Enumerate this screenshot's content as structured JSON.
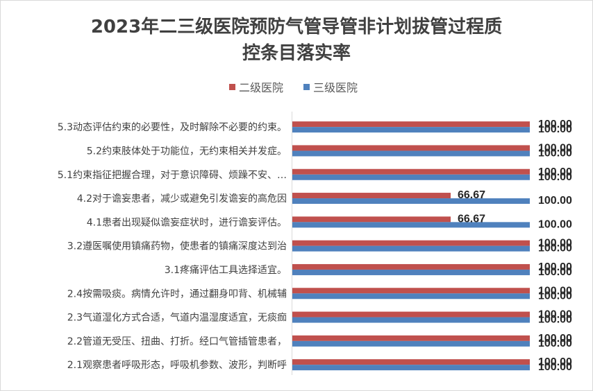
{
  "chart_data": {
    "type": "bar",
    "orientation": "horizontal",
    "title": "2023年二三级医院预防气管导管非计划拔管过程质控条目落实率",
    "title_lines": [
      "2023年二三级医院预防气管导管非计划拔管过程质",
      "控条目落实率"
    ],
    "xlim": [
      0,
      100
    ],
    "grid": false,
    "legend_position": "top",
    "categories": [
      "5.3动态评估约束的必要性，及时解除不必要的约束。",
      "5.2约束肢体处于功能位，无约束相关并发症。",
      "5.1约束指征把握合理，对于意识障碍、烦躁不安、…",
      "4.2对于谵妄患者，减少或避免引发谵妄的高危因",
      "4.1患者出现疑似谵妄症状时，进行谵妄评估。",
      "3.2遵医嘱使用镇痛药物，使患者的镇痛深度达到治",
      "3.1疼痛评估工具选择适宜。",
      "2.4按需吸痰。病情允许时，通过翻身叩背、机械辅",
      "2.3气道湿化方式合适，气道内温湿度适宜，无痰痂",
      "2.2管道无受压、扭曲、打折。经口气管插管患者，",
      "2.1观察患者呼吸形态，呼吸机参数、波形，判断呼"
    ],
    "series": [
      {
        "name": "二级医院",
        "color": "#C0504D",
        "values": [
          100.0,
          100.0,
          100.0,
          66.67,
          66.67,
          100.0,
          100.0,
          100.0,
          100.0,
          100.0,
          100.0
        ],
        "labels": [
          "100.00",
          "100.00",
          "100.00",
          "66.67",
          "66.67",
          "100.00",
          "100.00",
          "100.00",
          "100.00",
          "100.00",
          "100.00"
        ]
      },
      {
        "name": "三级医院",
        "color": "#4F81BD",
        "values": [
          100.0,
          100.0,
          100.0,
          100.0,
          100.0,
          100.0,
          100.0,
          100.0,
          100.0,
          100.0,
          100.0
        ],
        "labels": [
          "100.00",
          "100.00",
          "100.00",
          "100.00",
          "100.00",
          "100.00",
          "100.00",
          "100.00",
          "100.00",
          "100.00",
          "100.00"
        ]
      }
    ]
  }
}
